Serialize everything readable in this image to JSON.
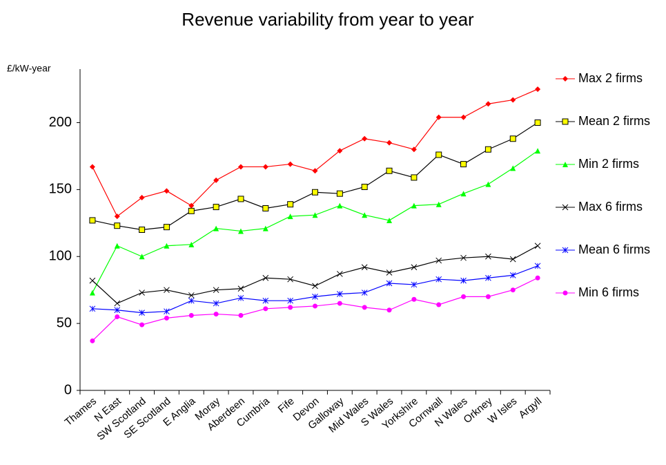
{
  "chart_data": {
    "type": "line",
    "title": "Revenue variability from year to year",
    "ylabel": "£/kW-year",
    "categories": [
      "Thames",
      "N East",
      "SW Scotland",
      "SE Scotland",
      "E Anglia",
      "Moray",
      "Aberdeen",
      "Cumbria",
      "Fife",
      "Devon",
      "Galloway",
      "Mid Wales",
      "S Wales",
      "Yorkshire",
      "Cornwall",
      "N Wales",
      "Orkney",
      "W Isles",
      "Argyll"
    ],
    "ylim": [
      0,
      240
    ],
    "yticks": [
      0,
      50,
      100,
      150,
      200
    ],
    "grid": false,
    "legend": "right",
    "series": [
      {
        "name": "Max 2 firms",
        "color": "#ff0000",
        "marker": "diamond",
        "marker_color": "#ff0000",
        "values": [
          167,
          130,
          144,
          149,
          138,
          157,
          167,
          167,
          169,
          164,
          179,
          188,
          185,
          180,
          204,
          204,
          214,
          217,
          225
        ]
      },
      {
        "name": "Mean 2 firms",
        "color": "#000000",
        "marker": "square",
        "marker_color": "#ffff00",
        "values": [
          127,
          123,
          120,
          122,
          134,
          137,
          143,
          136,
          139,
          148,
          147,
          152,
          164,
          159,
          176,
          169,
          180,
          188,
          200
        ]
      },
      {
        "name": "Min 2 firms",
        "color": "#00ff00",
        "marker": "triangle",
        "marker_color": "#00ff00",
        "values": [
          73,
          108,
          100,
          108,
          109,
          121,
          119,
          121,
          130,
          131,
          138,
          131,
          127,
          138,
          139,
          147,
          154,
          166,
          179
        ]
      },
      {
        "name": "Max 6 firms",
        "color": "#000000",
        "marker": "x",
        "marker_color": "#000000",
        "values": [
          82,
          65,
          73,
          75,
          71,
          75,
          76,
          84,
          83,
          78,
          87,
          92,
          88,
          92,
          97,
          99,
          100,
          98,
          108
        ]
      },
      {
        "name": "Mean 6 firms",
        "color": "#0000ff",
        "marker": "asterisk",
        "marker_color": "#0000ff",
        "values": [
          61,
          60,
          58,
          59,
          67,
          65,
          69,
          67,
          67,
          70,
          72,
          73,
          80,
          79,
          83,
          82,
          84,
          86,
          93
        ]
      },
      {
        "name": "Min 6 firms",
        "color": "#ff00ff",
        "marker": "circle",
        "marker_color": "#ff00ff",
        "values": [
          37,
          55,
          49,
          54,
          56,
          57,
          56,
          61,
          62,
          63,
          65,
          62,
          60,
          68,
          64,
          70,
          70,
          75,
          84
        ]
      }
    ]
  }
}
